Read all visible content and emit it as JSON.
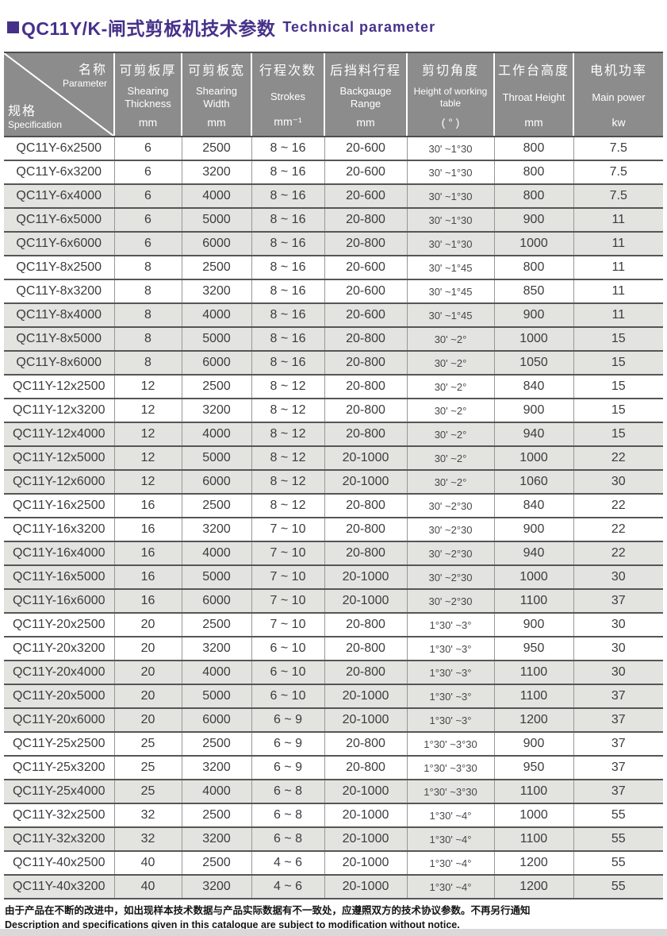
{
  "page": {
    "title_cn": "QC11Y/K-闸式剪板机技术参数",
    "title_en": "Technical parameter"
  },
  "colors": {
    "accent_purple": "#46318a",
    "header_gray": "#8c8c8c",
    "row_stripe": "#e3e3e0"
  },
  "table": {
    "corner": {
      "param_cn": "名称",
      "param_en": "Parameter",
      "spec_cn": "规格",
      "spec_en": "Specification"
    },
    "columns": [
      {
        "cn": "可剪板厚",
        "en": "Shearing Thickness",
        "unit": "mm"
      },
      {
        "cn": "可剪板宽",
        "en": "Shearing Width",
        "unit": "mm"
      },
      {
        "cn": "行程次数",
        "en": "Strokes",
        "unit": "mm⁻¹"
      },
      {
        "cn": "后挡料行程",
        "en": "Backgauge Range",
        "unit": "mm"
      },
      {
        "cn": "剪切角度",
        "en": "Height of working table",
        "unit": "( ° )"
      },
      {
        "cn": "工作台高度",
        "en": "Throat Height",
        "unit": "mm"
      },
      {
        "cn": "电机功率",
        "en": "Main power",
        "unit": "kw"
      }
    ],
    "rows": [
      {
        "spec": "QC11Y-6x2500",
        "values": [
          "6",
          "2500",
          "8 ~ 16",
          "20-600",
          "30' ~1°30",
          "800",
          "7.5"
        ],
        "shaded": false
      },
      {
        "spec": "QC11Y-6x3200",
        "values": [
          "6",
          "3200",
          "8 ~ 16",
          "20-600",
          "30' ~1°30",
          "800",
          "7.5"
        ],
        "shaded": false
      },
      {
        "spec": "QC11Y-6x4000",
        "values": [
          "6",
          "4000",
          "8 ~ 16",
          "20-600",
          "30' ~1°30",
          "800",
          "7.5"
        ],
        "shaded": true
      },
      {
        "spec": "QC11Y-6x5000",
        "values": [
          "6",
          "5000",
          "8 ~ 16",
          "20-800",
          "30' ~1°30",
          "900",
          "11"
        ],
        "shaded": true
      },
      {
        "spec": "QC11Y-6x6000",
        "values": [
          "6",
          "6000",
          "8 ~ 16",
          "20-800",
          "30' ~1°30",
          "1000",
          "11"
        ],
        "shaded": true
      },
      {
        "spec": "QC11Y-8x2500",
        "values": [
          "8",
          "2500",
          "8 ~ 16",
          "20-600",
          "30' ~1°45",
          "800",
          "11"
        ],
        "shaded": false
      },
      {
        "spec": "QC11Y-8x3200",
        "values": [
          "8",
          "3200",
          "8 ~ 16",
          "20-600",
          "30' ~1°45",
          "850",
          "11"
        ],
        "shaded": false
      },
      {
        "spec": "QC11Y-8x4000",
        "values": [
          "8",
          "4000",
          "8 ~ 16",
          "20-600",
          "30' ~1°45",
          "900",
          "11"
        ],
        "shaded": true
      },
      {
        "spec": "QC11Y-8x5000",
        "values": [
          "8",
          "5000",
          "8 ~ 16",
          "20-800",
          "30' ~2°",
          "1000",
          "15"
        ],
        "shaded": true
      },
      {
        "spec": "QC11Y-8x6000",
        "values": [
          "8",
          "6000",
          "8 ~ 16",
          "20-800",
          "30' ~2°",
          "1050",
          "15"
        ],
        "shaded": true
      },
      {
        "spec": "QC11Y-12x2500",
        "values": [
          "12",
          "2500",
          "8 ~ 12",
          "20-800",
          "30' ~2°",
          "840",
          "15"
        ],
        "shaded": false
      },
      {
        "spec": "QC11Y-12x3200",
        "values": [
          "12",
          "3200",
          "8 ~ 12",
          "20-800",
          "30' ~2°",
          "900",
          "15"
        ],
        "shaded": false
      },
      {
        "spec": "QC11Y-12x4000",
        "values": [
          "12",
          "4000",
          "8 ~ 12",
          "20-800",
          "30' ~2°",
          "940",
          "15"
        ],
        "shaded": true
      },
      {
        "spec": "QC11Y-12x5000",
        "values": [
          "12",
          "5000",
          "8 ~ 12",
          "20-1000",
          "30' ~2°",
          "1000",
          "22"
        ],
        "shaded": true
      },
      {
        "spec": "QC11Y-12x6000",
        "values": [
          "12",
          "6000",
          "8 ~ 12",
          "20-1000",
          "30' ~2°",
          "1060",
          "30"
        ],
        "shaded": true
      },
      {
        "spec": "QC11Y-16x2500",
        "values": [
          "16",
          "2500",
          "8 ~ 12",
          "20-800",
          "30' ~2°30",
          "840",
          "22"
        ],
        "shaded": false
      },
      {
        "spec": "QC11Y-16x3200",
        "values": [
          "16",
          "3200",
          "7 ~ 10",
          "20-800",
          "30' ~2°30",
          "900",
          "22"
        ],
        "shaded": false
      },
      {
        "spec": "QC11Y-16x4000",
        "values": [
          "16",
          "4000",
          "7 ~ 10",
          "20-800",
          "30' ~2°30",
          "940",
          "22"
        ],
        "shaded": true
      },
      {
        "spec": "QC11Y-16x5000",
        "values": [
          "16",
          "5000",
          "7 ~ 10",
          "20-1000",
          "30' ~2°30",
          "1000",
          "30"
        ],
        "shaded": true
      },
      {
        "spec": "QC11Y-16x6000",
        "values": [
          "16",
          "6000",
          "7 ~ 10",
          "20-1000",
          "30' ~2°30",
          "1100",
          "37"
        ],
        "shaded": true
      },
      {
        "spec": "QC11Y-20x2500",
        "values": [
          "20",
          "2500",
          "7 ~ 10",
          "20-800",
          "1°30' ~3°",
          "900",
          "30"
        ],
        "shaded": false
      },
      {
        "spec": "QC11Y-20x3200",
        "values": [
          "20",
          "3200",
          "6 ~ 10",
          "20-800",
          "1°30' ~3°",
          "950",
          "30"
        ],
        "shaded": false
      },
      {
        "spec": "QC11Y-20x4000",
        "values": [
          "20",
          "4000",
          "6 ~ 10",
          "20-800",
          "1°30' ~3°",
          "1100",
          "30"
        ],
        "shaded": true
      },
      {
        "spec": "QC11Y-20x5000",
        "values": [
          "20",
          "5000",
          "6 ~ 10",
          "20-1000",
          "1°30' ~3°",
          "1100",
          "37"
        ],
        "shaded": true
      },
      {
        "spec": "QC11Y-20x6000",
        "values": [
          "20",
          "6000",
          "6 ~ 9",
          "20-1000",
          "1°30' ~3°",
          "1200",
          "37"
        ],
        "shaded": true
      },
      {
        "spec": "QC11Y-25x2500",
        "values": [
          "25",
          "2500",
          "6 ~ 9",
          "20-800",
          "1°30' ~3°30",
          "900",
          "37"
        ],
        "shaded": false
      },
      {
        "spec": "QC11Y-25x3200",
        "values": [
          "25",
          "3200",
          "6 ~ 9",
          "20-800",
          "1°30' ~3°30",
          "950",
          "37"
        ],
        "shaded": false
      },
      {
        "spec": "QC11Y-25x4000",
        "values": [
          "25",
          "4000",
          "6 ~ 8",
          "20-1000",
          "1°30' ~3°30",
          "1100",
          "37"
        ],
        "shaded": true
      },
      {
        "spec": "QC11Y-32x2500",
        "values": [
          "32",
          "2500",
          "6 ~ 8",
          "20-1000",
          "1°30' ~4°",
          "1000",
          "55"
        ],
        "shaded": false
      },
      {
        "spec": "QC11Y-32x3200",
        "values": [
          "32",
          "3200",
          "6 ~ 8",
          "20-1000",
          "1°30' ~4°",
          "1100",
          "55"
        ],
        "shaded": true
      },
      {
        "spec": "QC11Y-40x2500",
        "values": [
          "40",
          "2500",
          "4 ~ 6",
          "20-1000",
          "1°30' ~4°",
          "1200",
          "55"
        ],
        "shaded": false
      },
      {
        "spec": "QC11Y-40x3200",
        "values": [
          "40",
          "3200",
          "4 ~ 6",
          "20-1000",
          "1°30' ~4°",
          "1200",
          "55"
        ],
        "shaded": true
      }
    ]
  },
  "footer": {
    "line_cn": "由于产品在不断的改进中，如出现样本技术数据与产品实际数据有不一致处，应遵照双方的技术协议参数。不再另行通知",
    "line_en": "Description and specifications given in this catalogue are subject to modification without notice."
  }
}
